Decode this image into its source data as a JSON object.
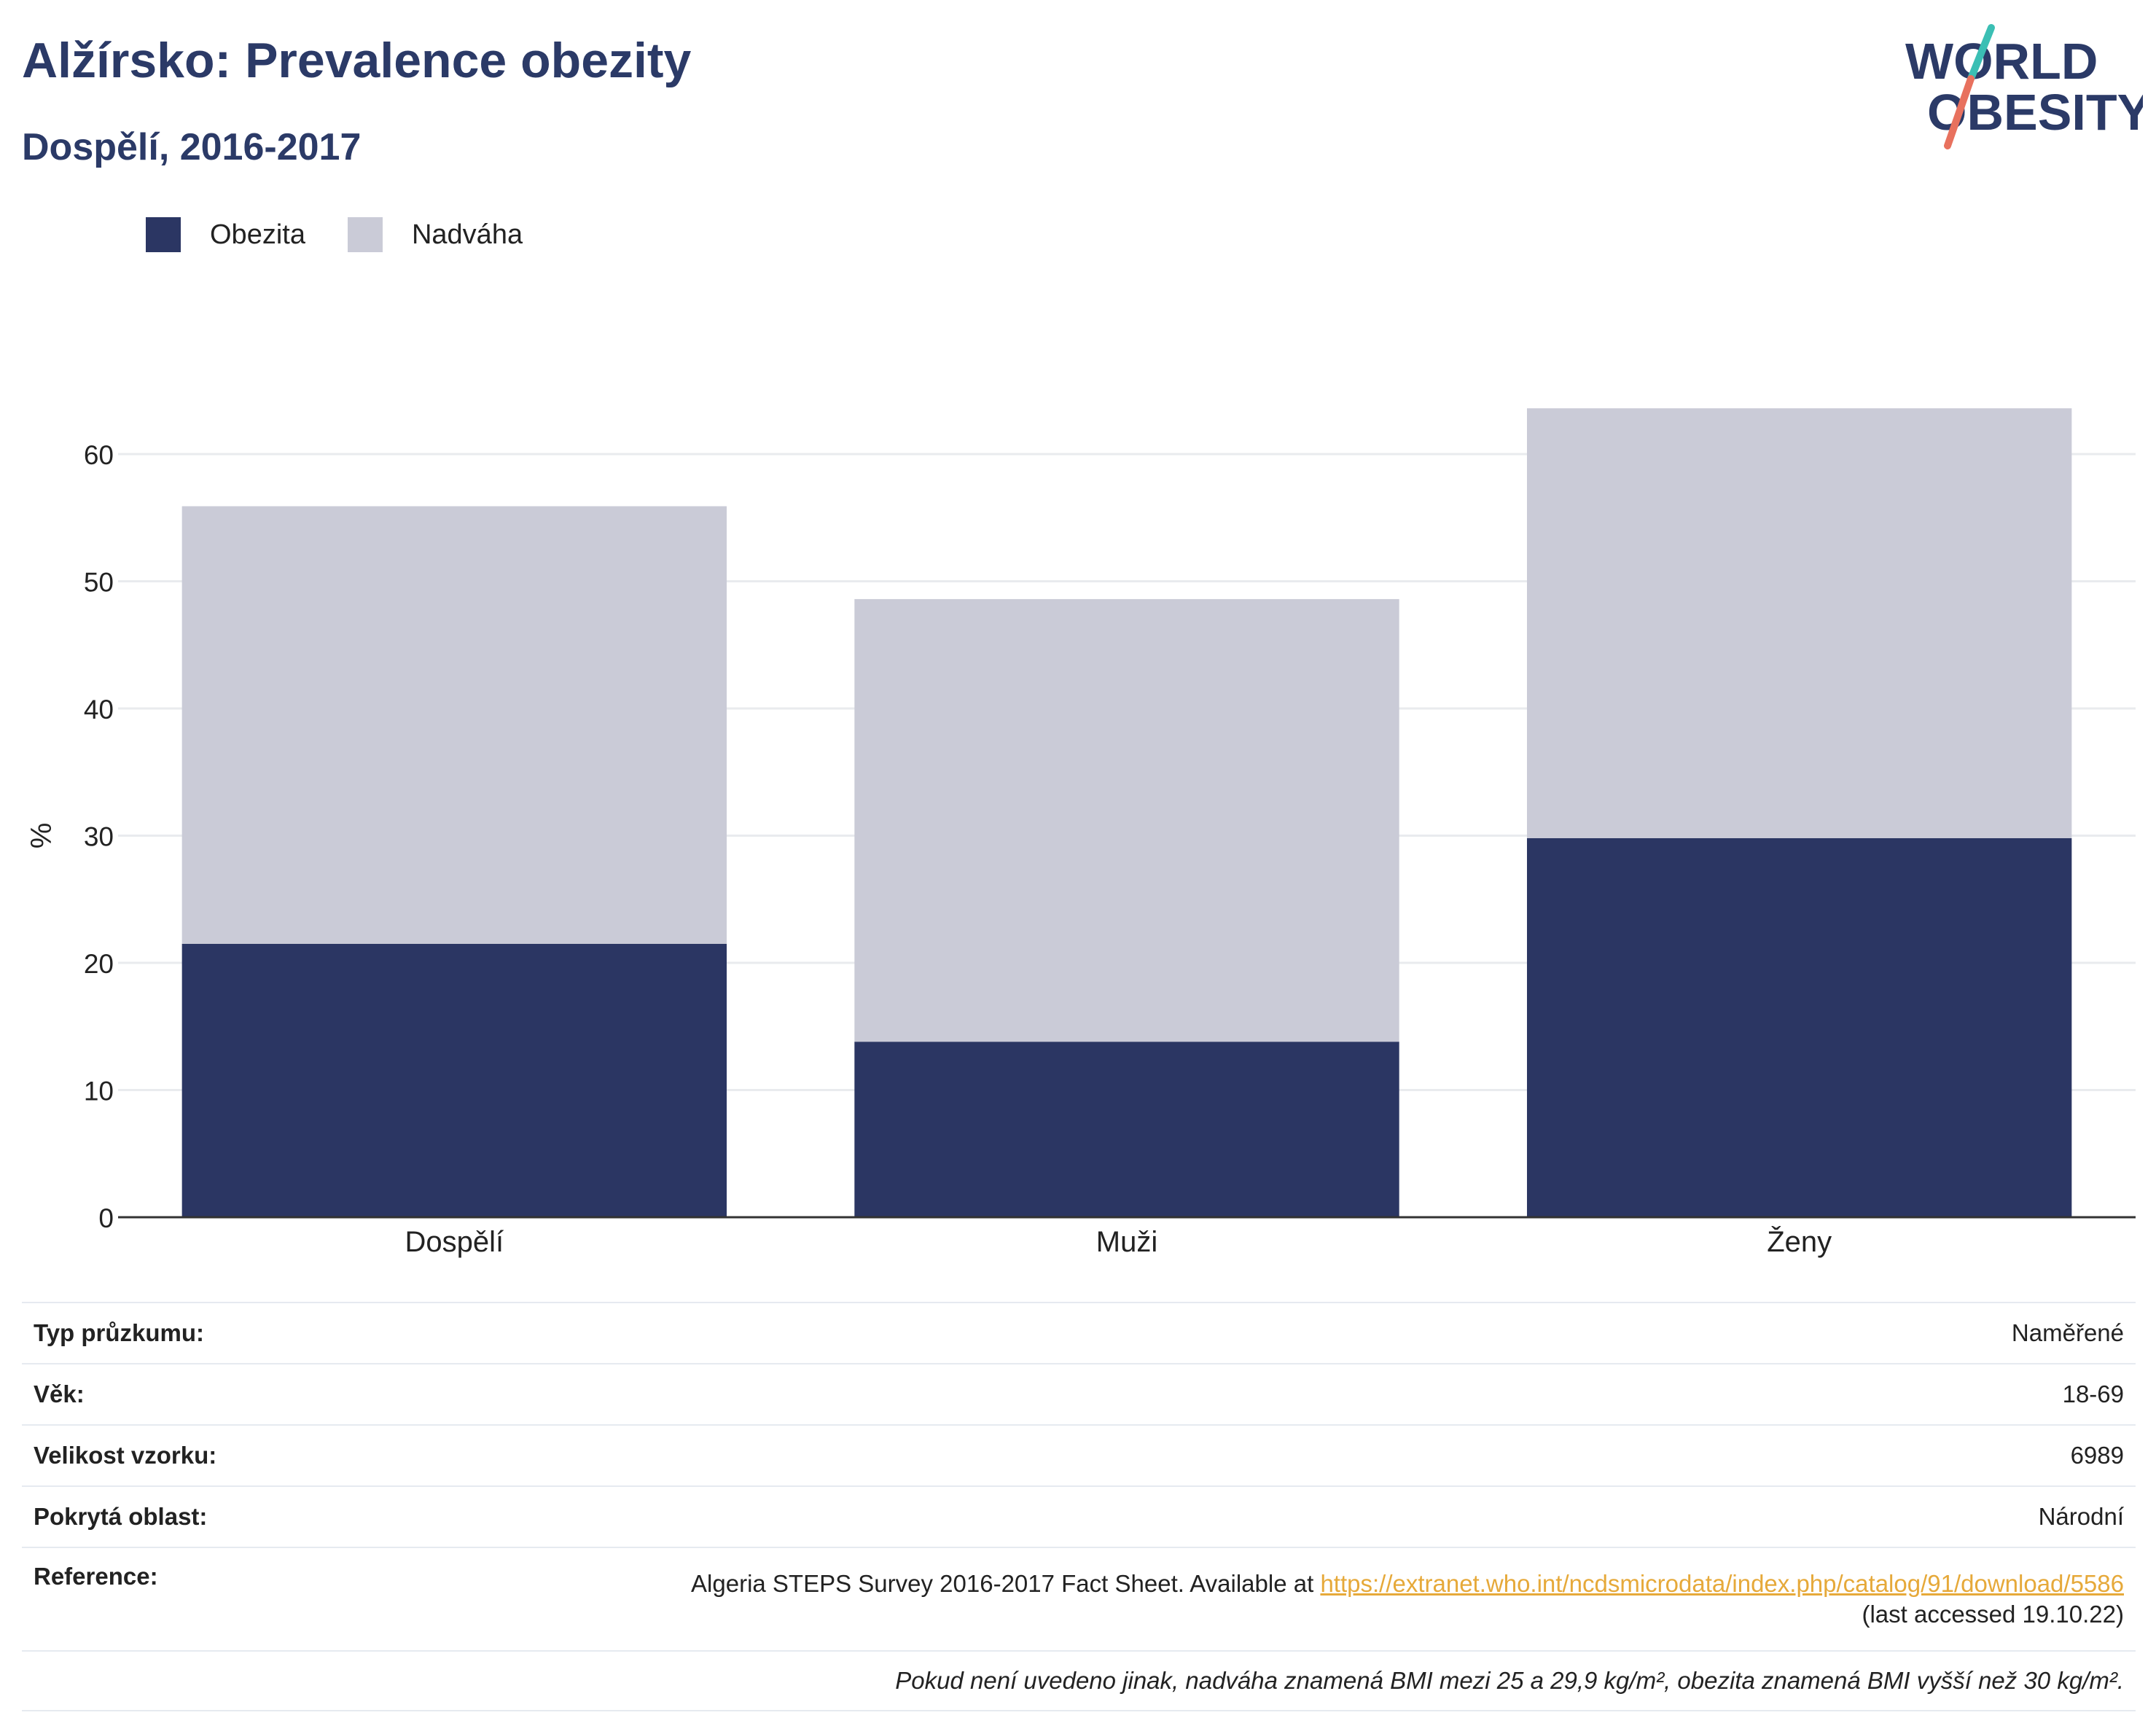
{
  "header": {
    "title": "Alžírsko: Prevalence obezity",
    "subtitle": "Dospělí, 2016-2017"
  },
  "logo": {
    "line1": "WORLD",
    "line2": "OBESITY",
    "colors": {
      "text": "#2b3a67",
      "slash_top": "#3bbfb4",
      "slash_bottom": "#e8715e"
    }
  },
  "colors": {
    "obesity": "#2b3663",
    "overweight": "#cacbd7",
    "link": "#e6a93a",
    "title": "#2b3a67"
  },
  "chart_data": {
    "type": "bar",
    "stacked": true,
    "categories": [
      "Dospělí",
      "Muži",
      "Ženy"
    ],
    "series": [
      {
        "name": "Obezita",
        "values": [
          21.5,
          13.8,
          29.8
        ],
        "color": "#2b3663"
      },
      {
        "name": "Nadváha",
        "values": [
          34.4,
          34.8,
          33.8
        ],
        "color": "#cacbd7"
      }
    ],
    "ylabel": "%",
    "ylim": [
      0,
      70
    ],
    "yticks": [
      0,
      10,
      20,
      30,
      40,
      50,
      60
    ],
    "grid": true,
    "legend": "top-left"
  },
  "info": {
    "rows": [
      {
        "label": "Typ průzkumu:",
        "value": "Naměřené"
      },
      {
        "label": "Věk:",
        "value": "18-69"
      },
      {
        "label": "Velikost vzorku:",
        "value": "6989"
      },
      {
        "label": "Pokrytá oblast:",
        "value": "Národní"
      }
    ],
    "reference": {
      "label": "Reference:",
      "text": "Algeria STEPS Survey 2016-2017 Fact Sheet. Available at ",
      "link": "https://extranet.who.int/ncdsmicrodata/index.php/catalog/91/download/5586",
      "accessed": "(last accessed 19.10.22)"
    },
    "note": "Pokud není uvedeno jinak, nadváha znamená BMI mezi 25 a 29,9 kg/m², obezita znamená BMI vyšší než 30 kg/m²."
  }
}
